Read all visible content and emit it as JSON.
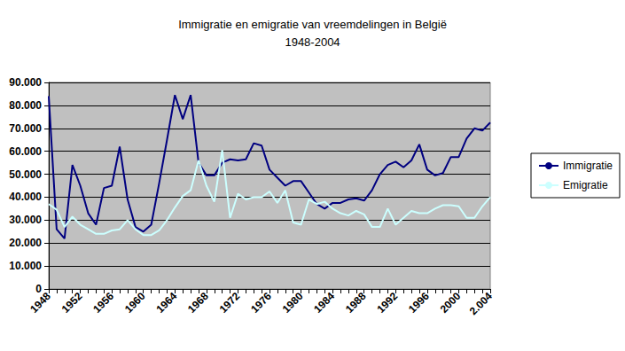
{
  "chart_data": {
    "type": "line",
    "title": "Immigratie en emigratie van vreemdelingen in België\n1948-2004",
    "categories": [
      "1948",
      null,
      null,
      null,
      "1952",
      null,
      null,
      null,
      "1956",
      null,
      null,
      null,
      "1960",
      null,
      null,
      null,
      "1964",
      null,
      null,
      null,
      "1968",
      null,
      null,
      null,
      "1972",
      null,
      null,
      null,
      "1976",
      null,
      null,
      null,
      "1980",
      null,
      null,
      null,
      "1984",
      null,
      null,
      null,
      "1988",
      null,
      null,
      null,
      "1992",
      null,
      null,
      null,
      "1996",
      null,
      null,
      null,
      "2000",
      null,
      null,
      null,
      "2.004"
    ],
    "series": [
      {
        "name": "Immigratie",
        "color": "#000080",
        "marker": "none",
        "line_style": "solid",
        "values": [
          84000,
          26000,
          22000,
          54000,
          45000,
          33000,
          28000,
          44000,
          45000,
          62000,
          39000,
          27000,
          25000,
          28000,
          46000,
          65000,
          84500,
          74000,
          84500,
          55000,
          49500,
          49500,
          55000,
          56500,
          56000,
          56500,
          63500,
          62500,
          52000,
          48500,
          45000,
          47000,
          47000,
          42000,
          37000,
          35000,
          37500,
          37500,
          39000,
          39500,
          38500,
          43000,
          50000,
          54000,
          55500,
          53000,
          56000,
          63000,
          52000,
          49500,
          50500,
          57500,
          57500,
          65500,
          70000,
          69000,
          72500
        ]
      },
      {
        "name": "Emigratie",
        "color": "#ccffff",
        "marker": "none",
        "line_style": "solid",
        "values": [
          37000,
          34500,
          27000,
          31500,
          28000,
          26000,
          24000,
          24000,
          25500,
          26000,
          30000,
          26000,
          23500,
          23500,
          25500,
          30000,
          35500,
          40500,
          43000,
          56000,
          45000,
          38000,
          60500,
          31000,
          41500,
          39000,
          40000,
          40000,
          42500,
          37500,
          43000,
          29000,
          28000,
          39000,
          37000,
          38000,
          35000,
          33000,
          32000,
          34000,
          32500,
          27000,
          27000,
          35000,
          28000,
          31000,
          34000,
          33000,
          33000,
          35000,
          36500,
          36500,
          36000,
          31000,
          31000,
          36000,
          40000
        ]
      }
    ],
    "ylim": [
      0,
      90000
    ],
    "yticks": [
      0,
      {
        "value": 10000,
        "label": "10.000"
      },
      {
        "value": 20000,
        "label": "20.000"
      },
      {
        "value": 30000,
        "label": "30.000"
      },
      {
        "value": 40000,
        "label": "40.000"
      },
      {
        "value": 50000,
        "label": "50.000"
      },
      {
        "value": 60000,
        "label": "60.000"
      },
      {
        "value": 70000,
        "label": "70.000"
      },
      {
        "value": 80000,
        "label": "80.000"
      },
      {
        "value": 90000,
        "label": "90.000"
      }
    ],
    "grid": true,
    "legend": "right"
  }
}
